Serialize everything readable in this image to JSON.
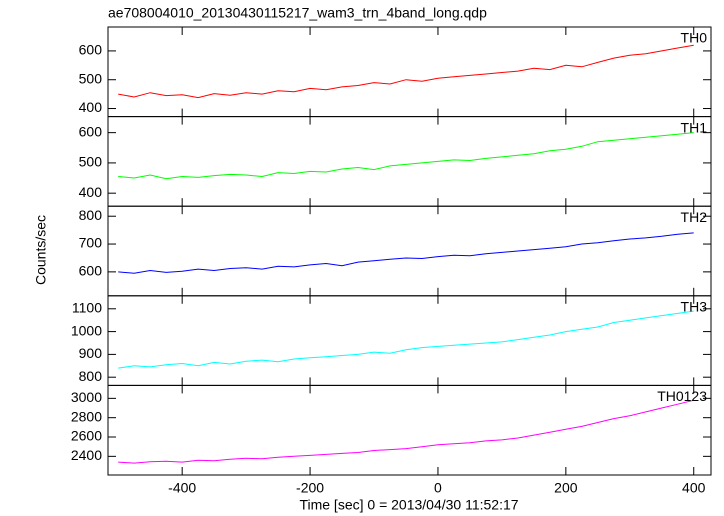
{
  "title": "ae708004010_20130430115217_wam3_trn_4band_long.qdp",
  "xlabel": "Time [sec] 0 = 2013/04/30 11:52:17",
  "ylabel": "Counts/sec",
  "chart_data": [
    {
      "type": "line",
      "xlim": [
        -516,
        427
      ],
      "xticks": [
        -400,
        -200,
        0,
        200,
        400
      ],
      "ylim": [
        372,
        683
      ],
      "yticks": [
        400,
        500,
        600
      ],
      "x": [
        -500,
        -475,
        -450,
        -425,
        -400,
        -375,
        -350,
        -325,
        -300,
        -275,
        -250,
        -225,
        -200,
        -175,
        -150,
        -125,
        -100,
        -75,
        -50,
        -25,
        0,
        25,
        50,
        75,
        100,
        125,
        150,
        175,
        200,
        225,
        250,
        275,
        300,
        325,
        350,
        375,
        400
      ],
      "series": [
        {
          "name": "TH0",
          "color": "#ff0000",
          "values": [
            450,
            440,
            455,
            445,
            448,
            438,
            452,
            446,
            455,
            450,
            462,
            458,
            470,
            465,
            475,
            480,
            490,
            485,
            500,
            495,
            505,
            510,
            515,
            520,
            525,
            530,
            540,
            535,
            550,
            545,
            560,
            575,
            585,
            590,
            600,
            610,
            620
          ]
        }
      ]
    },
    {
      "type": "line",
      "xlim": [
        -516,
        427
      ],
      "xticks": [
        -400,
        -200,
        0,
        200,
        400
      ],
      "ylim": [
        357,
        653
      ],
      "yticks": [
        400,
        500,
        600
      ],
      "x": [
        -500,
        -475,
        -450,
        -425,
        -400,
        -375,
        -350,
        -325,
        -300,
        -275,
        -250,
        -225,
        -200,
        -175,
        -150,
        -125,
        -100,
        -75,
        -50,
        -25,
        0,
        25,
        50,
        75,
        100,
        125,
        150,
        175,
        200,
        225,
        250,
        275,
        300,
        325,
        350,
        375,
        400
      ],
      "series": [
        {
          "name": "TH1",
          "color": "#00ff00",
          "values": [
            455,
            450,
            460,
            448,
            455,
            452,
            458,
            462,
            460,
            455,
            468,
            465,
            472,
            470,
            480,
            485,
            478,
            490,
            495,
            500,
            505,
            510,
            508,
            515,
            520,
            525,
            530,
            540,
            545,
            555,
            570,
            575,
            580,
            585,
            590,
            595,
            600
          ]
        }
      ]
    },
    {
      "type": "line",
      "xlim": [
        -516,
        427
      ],
      "xticks": [
        -400,
        -200,
        0,
        200,
        400
      ],
      "ylim": [
        514,
        836
      ],
      "yticks": [
        600,
        700,
        800
      ],
      "x": [
        -500,
        -475,
        -450,
        -425,
        -400,
        -375,
        -350,
        -325,
        -300,
        -275,
        -250,
        -225,
        -200,
        -175,
        -150,
        -125,
        -100,
        -75,
        -50,
        -25,
        0,
        25,
        50,
        75,
        100,
        125,
        150,
        175,
        200,
        225,
        250,
        275,
        300,
        325,
        350,
        375,
        400
      ],
      "series": [
        {
          "name": "TH2",
          "color": "#0000ff",
          "values": [
            600,
            595,
            605,
            598,
            602,
            610,
            605,
            612,
            615,
            610,
            620,
            618,
            625,
            630,
            622,
            635,
            640,
            645,
            650,
            648,
            655,
            660,
            658,
            665,
            670,
            675,
            680,
            685,
            690,
            700,
            705,
            712,
            718,
            722,
            728,
            735,
            740
          ]
        }
      ]
    },
    {
      "type": "line",
      "xlim": [
        -516,
        427
      ],
      "xticks": [
        -400,
        -200,
        0,
        200,
        400
      ],
      "ylim": [
        764,
        1157
      ],
      "yticks": [
        800,
        900,
        1000,
        1100
      ],
      "x": [
        -500,
        -475,
        -450,
        -425,
        -400,
        -375,
        -350,
        -325,
        -300,
        -275,
        -250,
        -225,
        -200,
        -175,
        -150,
        -125,
        -100,
        -75,
        -50,
        -25,
        0,
        25,
        50,
        75,
        100,
        125,
        150,
        175,
        200,
        225,
        250,
        275,
        300,
        325,
        350,
        375,
        400
      ],
      "series": [
        {
          "name": "TH3",
          "color": "#00ffff",
          "values": [
            840,
            850,
            845,
            855,
            860,
            850,
            865,
            858,
            870,
            875,
            868,
            880,
            885,
            890,
            895,
            900,
            910,
            905,
            920,
            930,
            935,
            940,
            945,
            950,
            955,
            965,
            975,
            985,
            1000,
            1010,
            1020,
            1040,
            1050,
            1060,
            1070,
            1080,
            1090
          ]
        }
      ]
    },
    {
      "type": "line",
      "xlim": [
        -516,
        427
      ],
      "xticks": [
        -400,
        -200,
        0,
        200,
        400
      ],
      "ylim": [
        2207,
        3134
      ],
      "yticks": [
        2400,
        2600,
        2800,
        3000
      ],
      "x": [
        -500,
        -475,
        -450,
        -425,
        -400,
        -375,
        -350,
        -325,
        -300,
        -275,
        -250,
        -225,
        -200,
        -175,
        -150,
        -125,
        -100,
        -75,
        -50,
        -25,
        0,
        25,
        50,
        75,
        100,
        125,
        150,
        175,
        200,
        225,
        250,
        275,
        300,
        325,
        350,
        375,
        400
      ],
      "series": [
        {
          "name": "TH0123",
          "color": "#ff00ff",
          "values": [
            2340,
            2330,
            2345,
            2350,
            2340,
            2360,
            2355,
            2370,
            2380,
            2375,
            2390,
            2400,
            2410,
            2420,
            2430,
            2440,
            2460,
            2470,
            2480,
            2500,
            2520,
            2530,
            2540,
            2560,
            2570,
            2590,
            2620,
            2650,
            2680,
            2710,
            2750,
            2790,
            2820,
            2860,
            2900,
            2940,
            2980
          ]
        }
      ]
    }
  ]
}
